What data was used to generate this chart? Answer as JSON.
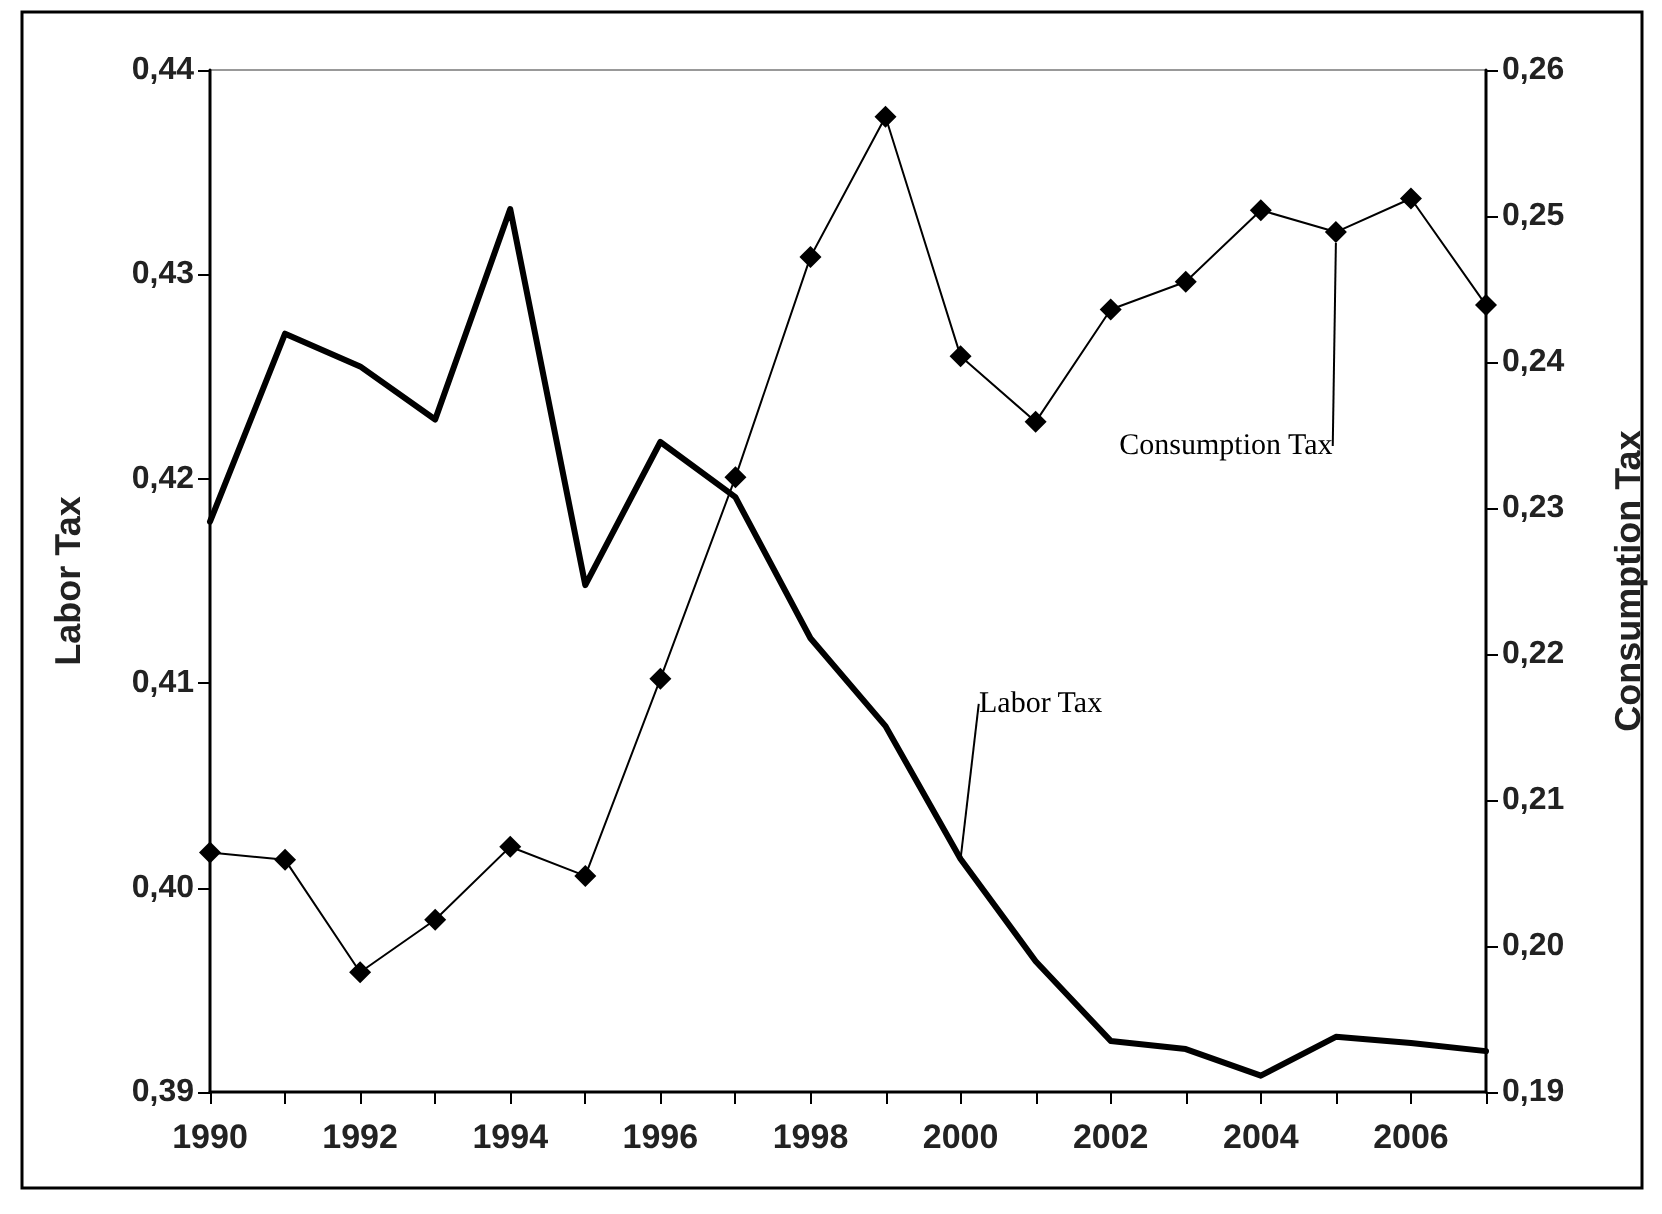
{
  "chart_data": {
    "type": "line",
    "ylabel": "Labor Tax",
    "y2label": "Consumption Tax",
    "x": [
      1990,
      1991,
      1992,
      1993,
      1994,
      1995,
      1996,
      1997,
      1998,
      1999,
      2000,
      2001,
      2002,
      2003,
      2004,
      2005,
      2006,
      2007
    ],
    "series": [
      {
        "name": "Labor Tax",
        "color": "#000000",
        "marker": "none",
        "values": [
          0.4179,
          0.4271,
          0.4255,
          0.4229,
          0.4332,
          0.4148,
          0.4218,
          0.4191,
          0.4122,
          0.4079,
          0.4014,
          0.3964,
          0.3925,
          0.3921,
          0.3908,
          0.3927,
          0.3924,
          0.392
        ]
      },
      {
        "name": "Consumption Tax",
        "color": "#000000",
        "marker": "diamond",
        "axis": "y2",
        "values": [
          0.2064,
          0.2059,
          0.1982,
          0.2018,
          0.2068,
          0.2048,
          0.2183,
          0.2321,
          0.2472,
          0.2568,
          0.2404,
          0.2359,
          0.2436,
          0.2455,
          0.2504,
          0.2489,
          0.2512,
          0.2439
        ]
      }
    ],
    "xlim": [
      1990,
      2007
    ],
    "xticks": [
      1990,
      {
        "value": 1991,
        "label": null
      },
      1992,
      {
        "value": 1993,
        "label": null
      },
      1994,
      {
        "value": 1995,
        "label": null
      },
      1996,
      {
        "value": 1997,
        "label": null
      },
      1998,
      {
        "value": 1999,
        "label": null
      },
      2000,
      {
        "value": 2001,
        "label": null
      },
      2002,
      {
        "value": 2003,
        "label": null
      },
      2004,
      {
        "value": 2005,
        "label": null
      },
      2006,
      {
        "value": 2007,
        "label": null
      }
    ],
    "ylim": [
      0.39,
      0.44
    ],
    "yticks": [
      {
        "value": 0.39,
        "label": "0,39"
      },
      {
        "value": 0.4,
        "label": "0,40"
      },
      {
        "value": 0.41,
        "label": "0,41"
      },
      {
        "value": 0.42,
        "label": "0,42"
      },
      {
        "value": 0.43,
        "label": "0,43"
      },
      {
        "value": 0.44,
        "label": "0,44"
      }
    ],
    "y2lim": [
      0.19,
      0.26
    ],
    "y2ticks": [
      {
        "value": 0.19,
        "label": "0,19"
      },
      {
        "value": 0.2,
        "label": "0,20"
      },
      {
        "value": 0.21,
        "label": "0,21"
      },
      {
        "value": 0.22,
        "label": "0,22"
      },
      {
        "value": 0.23,
        "label": "0,23"
      },
      {
        "value": 0.24,
        "label": "0,24"
      },
      {
        "value": 0.25,
        "label": "0,25"
      },
      {
        "value": 0.26,
        "label": "0,26"
      }
    ],
    "grid": false,
    "legend": false
  }
}
